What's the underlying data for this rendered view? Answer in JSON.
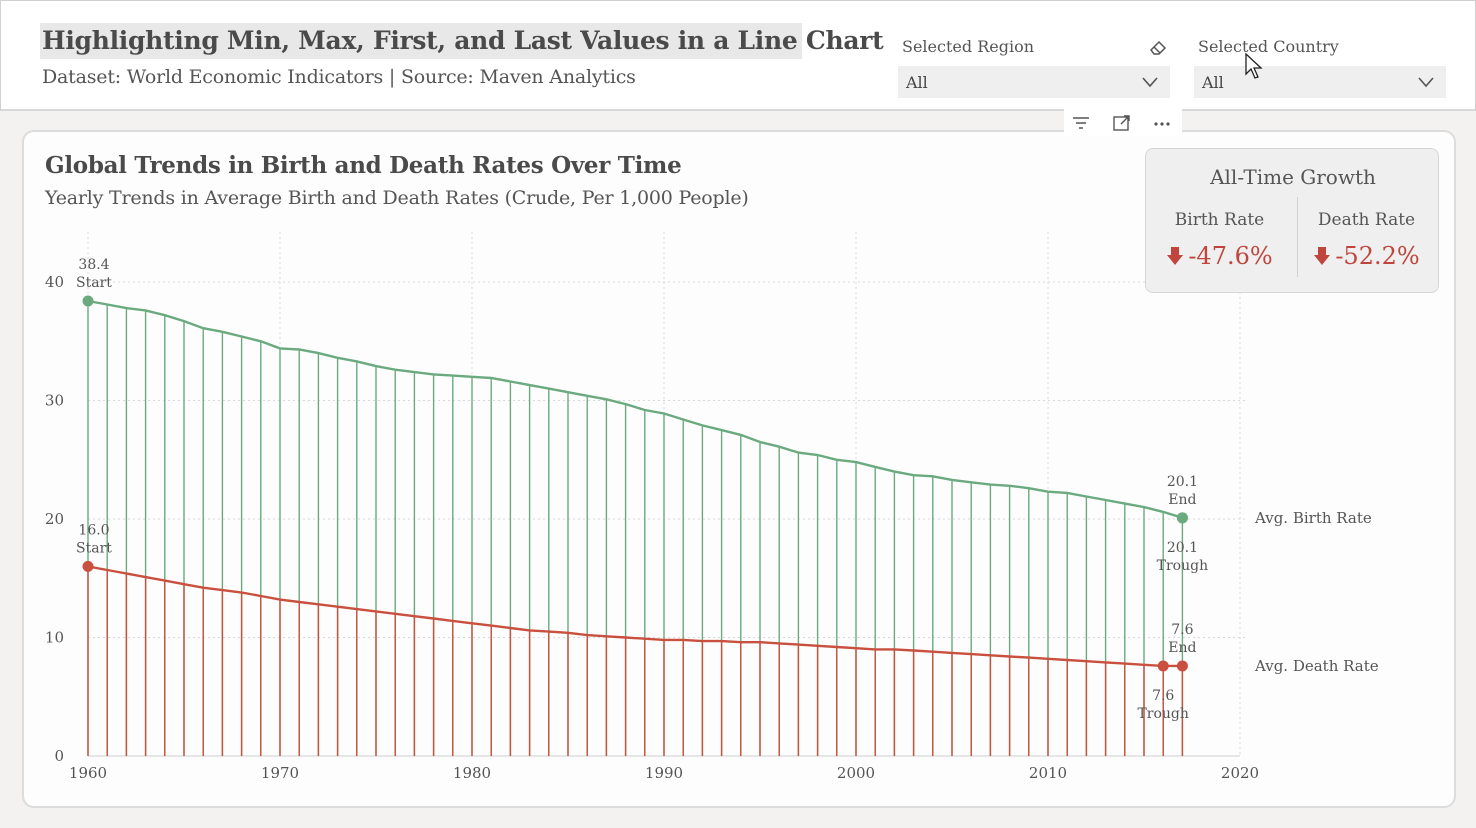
{
  "header": {
    "title": "Highlighting Min, Max, First, and Last Values in a Line Chart",
    "subtitle": "Dataset: World Economic Indicators | Source: Maven Analytics"
  },
  "filters": {
    "region": {
      "label": "Selected Region",
      "value": "All"
    },
    "country": {
      "label": "Selected Country",
      "value": "All"
    }
  },
  "visual_header_icons": [
    "filter-icon",
    "focus-mode-icon",
    "more-options-icon"
  ],
  "kpi": {
    "title": "All-Time Growth",
    "birth": {
      "label": "Birth Rate",
      "value": "-47.6%"
    },
    "death": {
      "label": "Death Rate",
      "value": "-52.2%"
    },
    "arrow_icon": "down-arrow-icon"
  },
  "colors": {
    "birth": "#6aaa7e",
    "death": "#c9503f",
    "kpi_negative": "#c0463d"
  },
  "chart_data": {
    "type": "line",
    "title": "Global Trends in Birth and Death Rates Over Time",
    "subtitle": "Yearly Trends in Average Birth and Death Rates (Crude, Per 1,000 People)",
    "x_ticks": [
      1960,
      1970,
      1980,
      1990,
      2000,
      2010,
      2020
    ],
    "y_ticks": [
      0,
      10,
      20,
      30,
      40
    ],
    "xlim": [
      1960,
      2020
    ],
    "ylim": [
      0,
      40
    ],
    "grid": true,
    "drop_lines": true,
    "x": [
      1960,
      1961,
      1962,
      1963,
      1964,
      1965,
      1966,
      1967,
      1968,
      1969,
      1970,
      1971,
      1972,
      1973,
      1974,
      1975,
      1976,
      1977,
      1978,
      1979,
      1980,
      1981,
      1982,
      1983,
      1984,
      1985,
      1986,
      1987,
      1988,
      1989,
      1990,
      1991,
      1992,
      1993,
      1994,
      1995,
      1996,
      1997,
      1998,
      1999,
      2000,
      2001,
      2002,
      2003,
      2004,
      2005,
      2006,
      2007,
      2008,
      2009,
      2010,
      2011,
      2012,
      2013,
      2014,
      2015,
      2016,
      2017
    ],
    "series": [
      {
        "name": "Avg. Birth Rate",
        "values": [
          38.4,
          38.1,
          37.8,
          37.6,
          37.2,
          36.7,
          36.1,
          35.8,
          35.4,
          35.0,
          34.4,
          34.3,
          34.0,
          33.6,
          33.3,
          32.9,
          32.6,
          32.4,
          32.2,
          32.1,
          32.0,
          31.9,
          31.6,
          31.3,
          31.0,
          30.7,
          30.4,
          30.1,
          29.7,
          29.2,
          28.9,
          28.4,
          27.9,
          27.5,
          27.1,
          26.5,
          26.1,
          25.6,
          25.4,
          25.0,
          24.8,
          24.4,
          24.0,
          23.7,
          23.6,
          23.3,
          23.1,
          22.9,
          22.8,
          22.6,
          22.3,
          22.2,
          21.9,
          21.6,
          21.3,
          21.0,
          20.6,
          20.1
        ],
        "annotations": [
          {
            "x": 1960,
            "y": 38.4,
            "value_label": "38.4",
            "tag": "Start"
          },
          {
            "x": 2017,
            "y": 20.1,
            "value_label": "20.1",
            "tag": "End"
          },
          {
            "x": 2017,
            "y": 20.1,
            "value_label": "20.1",
            "tag": "Trough"
          }
        ]
      },
      {
        "name": "Avg. Death Rate",
        "values": [
          16.0,
          15.7,
          15.4,
          15.1,
          14.8,
          14.5,
          14.2,
          14.0,
          13.8,
          13.5,
          13.2,
          13.0,
          12.8,
          12.6,
          12.4,
          12.2,
          12.0,
          11.8,
          11.6,
          11.4,
          11.2,
          11.0,
          10.8,
          10.6,
          10.5,
          10.4,
          10.2,
          10.1,
          10.0,
          9.9,
          9.8,
          9.8,
          9.7,
          9.7,
          9.6,
          9.6,
          9.5,
          9.4,
          9.3,
          9.2,
          9.1,
          9.0,
          9.0,
          8.9,
          8.8,
          8.7,
          8.6,
          8.5,
          8.4,
          8.3,
          8.2,
          8.1,
          8.0,
          7.9,
          7.8,
          7.7,
          7.6,
          7.6
        ],
        "annotations": [
          {
            "x": 1960,
            "y": 16.0,
            "value_label": "16.0",
            "tag": "Start"
          },
          {
            "x": 2017,
            "y": 7.6,
            "value_label": "7.6",
            "tag": "End"
          },
          {
            "x": 2016,
            "y": 7.6,
            "value_label": "7.6",
            "tag": "Trough"
          }
        ]
      }
    ]
  }
}
